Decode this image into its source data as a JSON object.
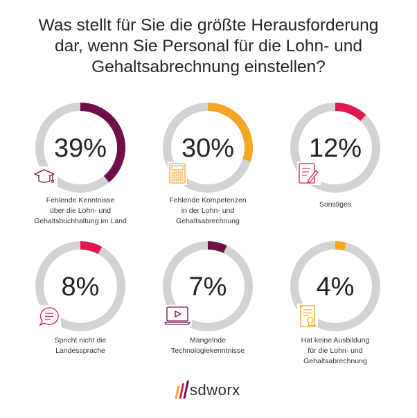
{
  "title": [
    "Was stellt für Sie die größte Herausforderung",
    "dar, wenn Sie Personal für die Lohn- und",
    "Gehaltsabrechnung einstellen?"
  ],
  "chart_data": {
    "type": "donut",
    "title": "Was stellt für Sie die größte Herausforderung dar, wenn Sie Personal für die Lohn- und Gehaltsabrechnung einstellen?",
    "items": [
      {
        "value": 39,
        "label": "39%",
        "caption": [
          "Fehlende Kenntnisse",
          "über die Lohn- und",
          "Gehaltsbuchhaltung im Land"
        ],
        "color": "#6e1048",
        "icon": "graduation-cap-icon"
      },
      {
        "value": 30,
        "label": "30%",
        "caption": [
          "Fehlende Kompetenzen",
          "in der Lohn- und",
          "Gehaltsabrechnung"
        ],
        "color": "#f5a623",
        "icon": "calculator-icon"
      },
      {
        "value": 12,
        "label": "12%",
        "caption": [
          "Sonstiges"
        ],
        "color": "#e0174f",
        "icon": "document-pen-icon"
      },
      {
        "value": 8,
        "label": "8%",
        "caption": [
          "Spricht nicht die",
          "Landessprache"
        ],
        "color": "#e0174f",
        "icon": "speech-bubble-icon"
      },
      {
        "value": 7,
        "label": "7%",
        "caption": [
          "Mangelnde",
          "Technologiekenntnisse"
        ],
        "color": "#6e1048",
        "icon": "video-laptop-icon"
      },
      {
        "value": 4,
        "label": "4%",
        "caption": [
          "Hat keine Ausbildung",
          "für die Lohn- und",
          "Gehaltsabrechnung"
        ],
        "color": "#f5a623",
        "icon": "certificate-icon"
      }
    ],
    "track_color": "#d3d3d3"
  },
  "logo": {
    "text": "sdworx"
  }
}
